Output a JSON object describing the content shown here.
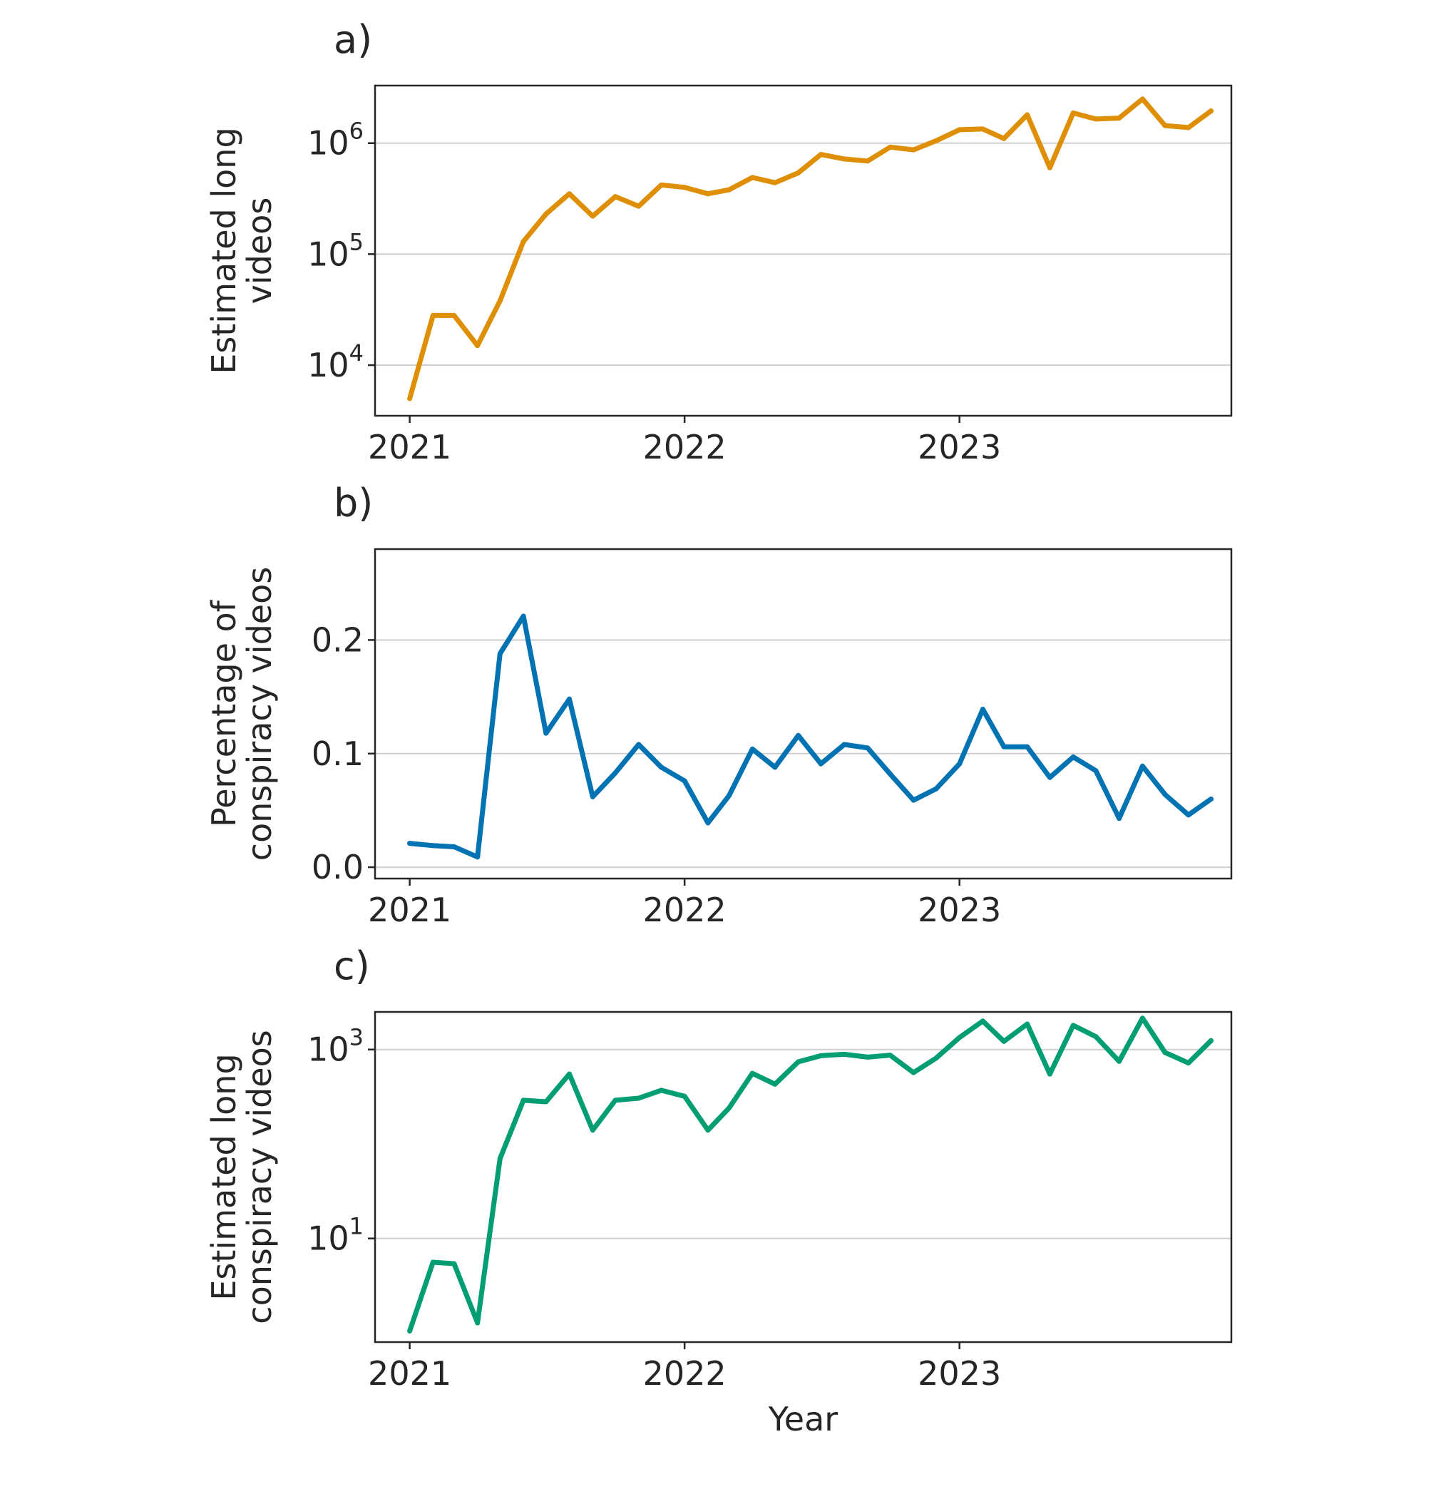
{
  "chart_data": [
    {
      "type": "line",
      "panel_label": "a)",
      "xlabel": "",
      "ylabel": [
        "Estimated long",
        "videos"
      ],
      "yscale": "log",
      "ylim": [
        3500,
        3300000
      ],
      "yticks": [
        {
          "value": 10000,
          "base": "10",
          "exp": "4"
        },
        {
          "value": 100000,
          "base": "10",
          "exp": "5"
        },
        {
          "value": 1000000,
          "base": "10",
          "exp": "6"
        }
      ],
      "xlim": [
        "2020-11-16",
        "2023-12-28"
      ],
      "xticks": [
        {
          "value": "2021-01-01",
          "label": "2021"
        },
        {
          "value": "2022-01-01",
          "label": "2022"
        },
        {
          "value": "2023-01-01",
          "label": "2023"
        }
      ],
      "grid": "y",
      "color": "#de8f05",
      "series": [
        {
          "x": [
            "2021-01-01",
            "2021-02-01",
            "2021-03-01",
            "2021-04-01",
            "2021-05-01",
            "2021-06-01",
            "2021-07-01",
            "2021-08-01",
            "2021-09-01",
            "2021-10-01",
            "2021-11-01",
            "2021-12-01",
            "2022-01-01",
            "2022-02-01",
            "2022-03-01",
            "2022-04-01",
            "2022-05-01",
            "2022-06-01",
            "2022-07-01",
            "2022-08-01",
            "2022-09-01",
            "2022-10-01",
            "2022-11-01",
            "2022-12-01",
            "2023-01-01",
            "2023-02-01",
            "2023-03-01",
            "2023-04-01",
            "2023-05-01",
            "2023-06-01",
            "2023-07-01",
            "2023-08-01",
            "2023-09-01",
            "2023-10-01",
            "2023-11-01",
            "2023-12-01"
          ],
          "values": [
            5000,
            28000,
            28000,
            15000,
            38000,
            130000,
            230000,
            350000,
            220000,
            330000,
            270000,
            420000,
            400000,
            350000,
            380000,
            490000,
            440000,
            540000,
            790000,
            720000,
            690000,
            920000,
            870000,
            1050000,
            1320000,
            1340000,
            1100000,
            1800000,
            600000,
            1870000,
            1650000,
            1680000,
            2500000,
            1440000,
            1380000,
            1950000
          ]
        }
      ]
    },
    {
      "type": "line",
      "panel_label": "b)",
      "xlabel": "",
      "ylabel": [
        "Percentage of",
        "conspiracy videos"
      ],
      "yscale": "linear",
      "ylim": [
        -0.01,
        0.28
      ],
      "yticks": [
        {
          "value": 0.0,
          "label": "0.0"
        },
        {
          "value": 0.1,
          "label": "0.1"
        },
        {
          "value": 0.2,
          "label": "0.2"
        }
      ],
      "xlim": [
        "2020-11-16",
        "2023-12-28"
      ],
      "xticks": [
        {
          "value": "2021-01-01",
          "label": "2021"
        },
        {
          "value": "2022-01-01",
          "label": "2022"
        },
        {
          "value": "2023-01-01",
          "label": "2023"
        }
      ],
      "grid": "y",
      "color": "#0173b2",
      "series": [
        {
          "x": [
            "2021-01-01",
            "2021-02-01",
            "2021-03-01",
            "2021-04-01",
            "2021-05-01",
            "2021-06-01",
            "2021-07-01",
            "2021-08-01",
            "2021-09-01",
            "2021-10-01",
            "2021-11-01",
            "2021-12-01",
            "2022-01-01",
            "2022-02-01",
            "2022-03-01",
            "2022-04-01",
            "2022-05-01",
            "2022-06-01",
            "2022-07-01",
            "2022-08-01",
            "2022-09-01",
            "2022-10-01",
            "2022-11-01",
            "2022-12-01",
            "2023-01-01",
            "2023-02-01",
            "2023-03-01",
            "2023-04-01",
            "2023-05-01",
            "2023-06-01",
            "2023-07-01",
            "2023-08-01",
            "2023-09-01",
            "2023-10-01",
            "2023-11-01",
            "2023-12-01"
          ],
          "values": [
            0.021,
            0.019,
            0.018,
            0.009,
            0.188,
            0.221,
            0.118,
            0.148,
            0.062,
            0.083,
            0.108,
            0.088,
            0.076,
            0.039,
            0.063,
            0.104,
            0.088,
            0.116,
            0.091,
            0.108,
            0.105,
            0.082,
            0.059,
            0.069,
            0.091,
            0.139,
            0.106,
            0.106,
            0.079,
            0.097,
            0.085,
            0.043,
            0.089,
            0.064,
            0.046,
            0.06
          ]
        }
      ]
    },
    {
      "type": "line",
      "panel_label": "c)",
      "xlabel": "Year",
      "ylabel": [
        "Estimated long",
        "conspiracy videos"
      ],
      "yscale": "log",
      "ylim": [
        0.8,
        2500
      ],
      "yticks": [
        {
          "value": 10,
          "base": "10",
          "exp": "1"
        },
        {
          "value": 1000,
          "base": "10",
          "exp": "3"
        }
      ],
      "xlim": [
        "2020-11-16",
        "2023-12-28"
      ],
      "xticks": [
        {
          "value": "2021-01-01",
          "label": "2021"
        },
        {
          "value": "2022-01-01",
          "label": "2022"
        },
        {
          "value": "2023-01-01",
          "label": "2023"
        }
      ],
      "grid": "y",
      "color": "#029e73",
      "series": [
        {
          "x": [
            "2021-01-01",
            "2021-02-01",
            "2021-03-01",
            "2021-04-01",
            "2021-05-01",
            "2021-06-01",
            "2021-07-01",
            "2021-08-01",
            "2021-09-01",
            "2021-10-01",
            "2021-11-01",
            "2021-12-01",
            "2022-01-01",
            "2022-02-01",
            "2022-03-01",
            "2022-04-01",
            "2022-05-01",
            "2022-06-01",
            "2022-07-01",
            "2022-08-01",
            "2022-09-01",
            "2022-10-01",
            "2022-11-01",
            "2022-12-01",
            "2023-01-01",
            "2023-02-01",
            "2023-03-01",
            "2023-04-01",
            "2023-05-01",
            "2023-06-01",
            "2023-07-01",
            "2023-08-01",
            "2023-09-01",
            "2023-10-01",
            "2023-11-01",
            "2023-12-01"
          ],
          "values": [
            1.05,
            5.6,
            5.4,
            1.28,
            70,
            290,
            280,
            550,
            140,
            290,
            305,
            370,
            320,
            140,
            240,
            560,
            430,
            740,
            860,
            890,
            830,
            870,
            570,
            810,
            1340,
            2000,
            1220,
            1860,
            550,
            1800,
            1370,
            750,
            2150,
            930,
            720,
            1240
          ]
        }
      ]
    }
  ]
}
